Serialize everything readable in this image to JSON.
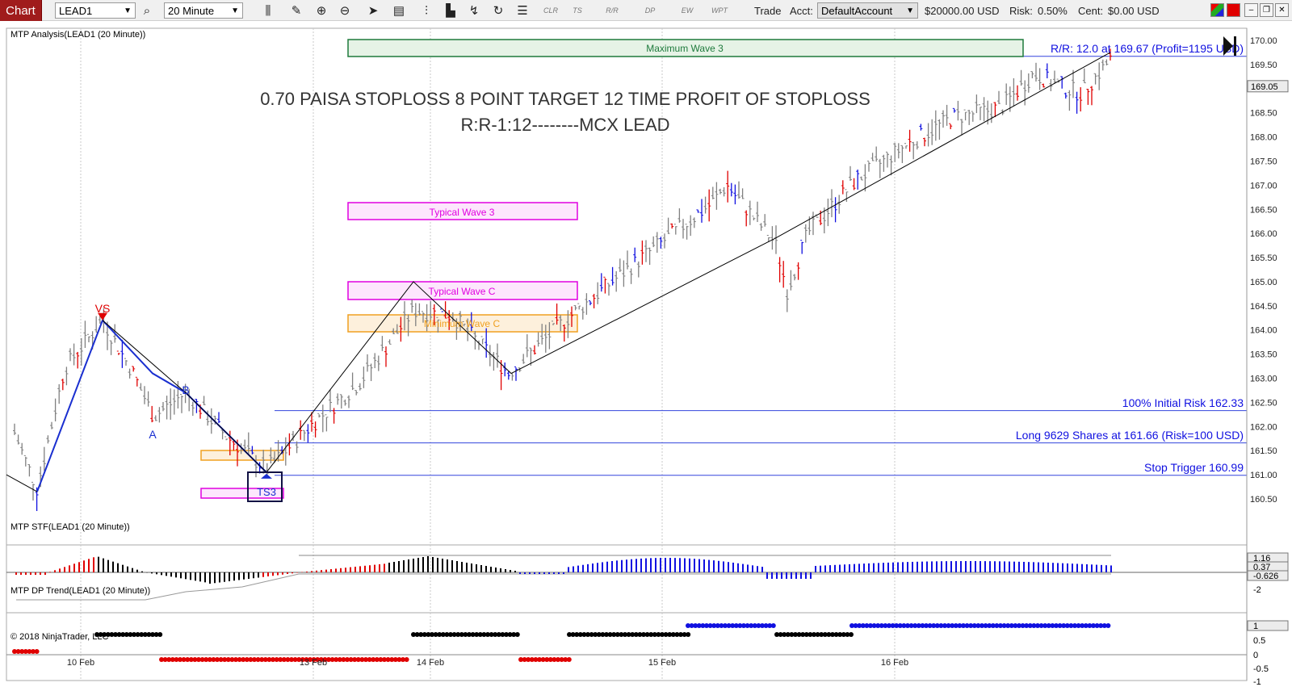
{
  "toolbar": {
    "chart_tab": "Chart",
    "instrument": "LEAD1",
    "interval": "20 Minute",
    "icons": [
      "search-icon",
      "bar-style-icon",
      "draw-pencil-icon",
      "zoom-in-icon",
      "zoom-out-icon",
      "cursor-icon",
      "data-box-icon",
      "bar-spacing-icon",
      "price-markers-icon",
      "drawing-tools-icon",
      "refresh-icon",
      "list-icon"
    ],
    "mtp_buttons": [
      "CLR",
      "TS",
      "R/R",
      "DP",
      "EW",
      "WPT"
    ],
    "trade_label": "Trade",
    "acct_label": "Acct:",
    "account": "DefaultAccount",
    "balance": "$20000.00",
    "currency": "USD",
    "risk_label": "Risk:",
    "risk_value": "0.50%",
    "cent_label": "Cent:",
    "cent_value": "$0.00 USD"
  },
  "chart": {
    "panel_title": "MTP Analysis(LEAD1 (20 Minute))",
    "headline_1": "0.70 PAISA STOPLOSS 8 POINT TARGET 12 TIME PROFIT OF STOPLOSS",
    "headline_2": "R:R-1:12--------MCX LEAD",
    "zones": {
      "max_wave3": "Maximum Wave 3",
      "typical_wave3": "Typical Wave 3",
      "typical_waveC": "Typical Wave C",
      "minimum_waveC": "Minimum Wave C"
    },
    "wave_labels": {
      "vs": "VS",
      "a": "A",
      "b": "B",
      "a2": "A",
      "ts3": "TS3"
    },
    "rr_label": "R/R: 12.0 at 169.67 (Profit=1195 USD)",
    "risk_lines": {
      "initial_risk": "100% Initial Risk 162.33",
      "long_entry": "Long 9629 Shares at 161.66 (Risk=100 USD)",
      "stop_trigger": "Stop Trigger 160.99"
    },
    "price_ticks": [
      "170.00",
      "169.50",
      "169.00",
      "168.50",
      "168.00",
      "167.50",
      "167.00",
      "166.50",
      "166.00",
      "165.50",
      "165.00",
      "164.50",
      "164.00",
      "163.50",
      "163.00",
      "162.50",
      "162.00",
      "161.50",
      "161.00",
      "160.50"
    ],
    "last_price": "169.05",
    "stf_title": "MTP STF(LEAD1 (20 Minute))",
    "stf_ticks": [
      "1.16",
      "0.37",
      "-0.626",
      "-2"
    ],
    "dp_title": "MTP DP Trend(LEAD1 (20 Minute))",
    "dp_ticks": [
      "1",
      "0.5",
      "0",
      "-0.5",
      "-1"
    ],
    "copyright": "© 2018 NinjaTrader, LLC",
    "date_labels": [
      "10 Feb",
      "13 Feb",
      "14 Feb",
      "15 Feb",
      "16 Feb"
    ]
  },
  "colors": {
    "up_bar": "#808080",
    "down_bar": "#e00000",
    "blue_bar": "#1010e0",
    "wave_line": "#1a2fd0",
    "zone_green": "#1e7a3c",
    "zone_magenta": "#e000e0",
    "zone_orange": "#f0a020",
    "risk_text": "#1010e0"
  }
}
